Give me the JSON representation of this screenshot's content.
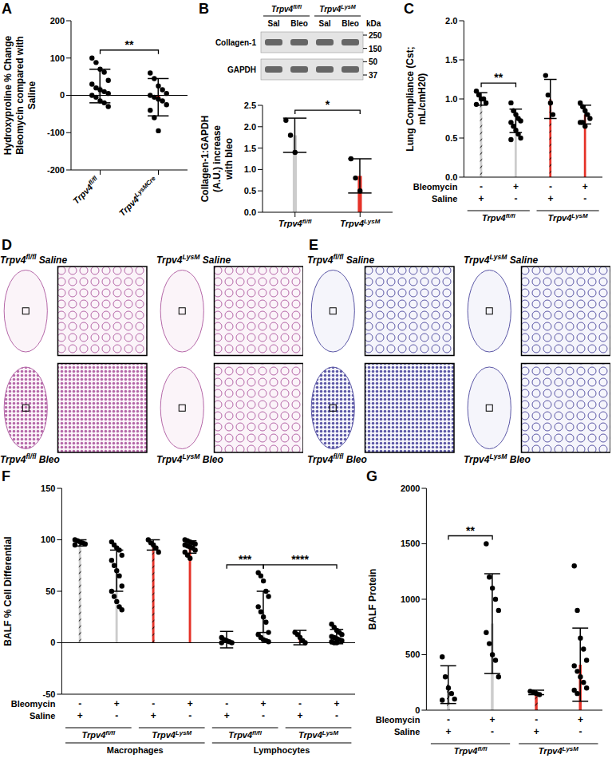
{
  "chart_data": [
    {
      "panel": "A",
      "type": "bar",
      "y_label": "Hydroxyproline % Change Bleomycin compared with Saline",
      "categories": [
        "Trpv4fl/fl",
        "Trpv4LysMCre"
      ],
      "values": [
        25,
        -5
      ],
      "error": [
        45,
        50
      ],
      "points": [
        [
          100,
          88,
          70,
          62,
          40,
          30,
          20,
          15,
          10,
          5,
          0,
          -5,
          -15,
          -20,
          -30
        ],
        [
          60,
          45,
          25,
          15,
          5,
          0,
          -5,
          -10,
          -15,
          -25,
          -40,
          -60,
          -95
        ]
      ],
      "colors": [
        "#cccccc",
        "#e53228"
      ],
      "ylim": [
        -200,
        200
      ],
      "yticks": [
        -200,
        -100,
        0,
        100,
        200
      ],
      "annotations": [
        {
          "text": "**",
          "from": 0,
          "to": 1
        }
      ]
    },
    {
      "panel": "B",
      "type": "bar",
      "y_label": "Collagen-1:GAPDH (A.U.) increase with bleo",
      "categories": [
        "Trpv4fl/fl",
        "Trpv4LysM"
      ],
      "values": [
        1.8,
        0.85
      ],
      "error": [
        0.4,
        0.4
      ],
      "points": [
        [
          2.15,
          1.8,
          1.4
        ],
        [
          1.25,
          0.8,
          0.5
        ]
      ],
      "colors": [
        "#cccccc",
        "#e53228"
      ],
      "ylim": [
        0,
        2.5
      ],
      "yticks": [
        {
          "value": 0,
          "label": "0.0"
        },
        {
          "value": 0.5,
          "label": "0.5"
        },
        {
          "value": 1,
          "label": "1.0"
        },
        {
          "value": 1.5,
          "label": "1.5"
        },
        {
          "value": 2,
          "label": "2.0"
        },
        {
          "value": 2.5,
          "label": "2.5"
        }
      ],
      "annotations": [
        {
          "text": "*",
          "from": 0,
          "to": 1
        }
      ],
      "blot": {
        "groups": [
          {
            "label": "Trpv4fl/fl",
            "span": [
              0,
              1
            ]
          },
          {
            "label": "Trpv4LysM",
            "span": [
              2,
              3
            ]
          }
        ],
        "lanes": [
          "Sal",
          "Bleo",
          "Sal",
          "Bleo"
        ],
        "rows": [
          "Collagen-1",
          "GAPDH"
        ],
        "marker_unit": "kDa",
        "markers": [
          250,
          150,
          50,
          37
        ]
      }
    },
    {
      "panel": "C",
      "type": "bar",
      "y_label": "Lung Compliance (Cst; mL/cmH20)",
      "values": [
        1.0,
        0.72,
        1.0,
        0.8
      ],
      "error": [
        0.08,
        0.15,
        0.25,
        0.12
      ],
      "points": [
        [
          1.1,
          1.05,
          1.0,
          1.0,
          0.95,
          0.93
        ],
        [
          0.95,
          0.85,
          0.8,
          0.75,
          0.72,
          0.7,
          0.65,
          0.6,
          0.55,
          0.5,
          0.48
        ],
        [
          1.3,
          1.05,
          0.95,
          0.8
        ],
        [
          0.95,
          0.9,
          0.85,
          0.8,
          0.75,
          0.7,
          0.7,
          0.65
        ]
      ],
      "colors": [
        "#cccccc",
        "#cccccc",
        "#e53228",
        "#e53228"
      ],
      "ylim": [
        0,
        2
      ],
      "yticks": [
        {
          "value": 0,
          "label": "0.0"
        },
        {
          "value": 0.5,
          "label": "0.5"
        },
        {
          "value": 1,
          "label": "1.0"
        },
        {
          "value": 1.5,
          "label": "1.5"
        },
        {
          "value": 2,
          "label": "2.0"
        }
      ],
      "treatments": [
        {
          "label": "Bleomycin",
          "signs": [
            "-",
            "+",
            "-",
            "+"
          ]
        },
        {
          "label": "Saline",
          "signs": [
            "+",
            "-",
            "+",
            "-"
          ]
        }
      ],
      "groups": [
        {
          "label": "Trpv4fl/fl",
          "span": [
            0,
            1
          ]
        },
        {
          "label": "Trpv4LysM",
          "span": [
            2,
            3
          ]
        }
      ],
      "annotations": [
        {
          "text": "**",
          "from": 0,
          "to": 1
        }
      ]
    },
    {
      "panel": "F",
      "type": "bar",
      "y_label": "BALF % Cell Differential",
      "values": [
        97,
        70,
        95,
        93,
        3,
        30,
        5,
        6
      ],
      "error": [
        3,
        20,
        5,
        6,
        8,
        20,
        7,
        7
      ],
      "points": [
        [
          100,
          99,
          98,
          97,
          96,
          95
        ],
        [
          98,
          95,
          92,
          90,
          85,
          80,
          75,
          70,
          65,
          55,
          50,
          45,
          40,
          35,
          32
        ],
        [
          100,
          97,
          95,
          92,
          88
        ],
        [
          100,
          99,
          98,
          97,
          96,
          95,
          94,
          93,
          92,
          90,
          88,
          85,
          82
        ],
        [
          5,
          3,
          2,
          1,
          0,
          0
        ],
        [
          68,
          65,
          60,
          50,
          45,
          35,
          30,
          25,
          20,
          10,
          8,
          5,
          3,
          2,
          1
        ],
        [
          10,
          8,
          5,
          2,
          0
        ],
        [
          18,
          15,
          12,
          10,
          8,
          6,
          5,
          4,
          3,
          2,
          1,
          0,
          0
        ]
      ],
      "colors": [
        "#cccccc",
        "#cccccc",
        "#e53228",
        "#e53228",
        "#cccccc",
        "#cccccc",
        "#e53228",
        "#e53228"
      ],
      "ylim": [
        -50,
        150
      ],
      "yticks": [
        -50,
        0,
        50,
        100,
        150
      ],
      "treatments": [
        {
          "label": "Bleomycin",
          "signs": [
            "-",
            "+",
            "-",
            "+",
            "-",
            "+",
            "-",
            "+"
          ]
        },
        {
          "label": "Saline",
          "signs": [
            "+",
            "-",
            "+",
            "-",
            "+",
            "-",
            "+",
            "-"
          ]
        }
      ],
      "groups": [
        {
          "label": "Trpv4fl/fl",
          "span": [
            0,
            1
          ]
        },
        {
          "label": "Trpv4LysM",
          "span": [
            2,
            3
          ]
        },
        {
          "label": "Trpv4fl/fl",
          "span": [
            4,
            5
          ]
        },
        {
          "label": "Trpv4LysM",
          "span": [
            6,
            7
          ]
        }
      ],
      "supergroups": [
        {
          "label": "Macrophages",
          "span": [
            0,
            3
          ]
        },
        {
          "label": "Lymphocytes",
          "span": [
            4,
            7
          ]
        }
      ],
      "annotations": [
        {
          "text": "***",
          "from": 4,
          "to": 5
        },
        {
          "text": "****",
          "from": 5,
          "to": 7
        }
      ]
    },
    {
      "panel": "G",
      "type": "bar",
      "y_label": "BALF Protein",
      "values": [
        230,
        780,
        160,
        410
      ],
      "error": [
        170,
        450,
        20,
        330
      ],
      "points": [
        [
          480,
          300,
          200,
          150,
          100,
          90
        ],
        [
          1500,
          1200,
          1100,
          1000,
          900,
          700,
          600,
          500,
          450,
          300
        ],
        [
          170,
          160,
          150,
          140
        ],
        [
          1300,
          900,
          650,
          550,
          450,
          400,
          350,
          300,
          250,
          200,
          180,
          150
        ]
      ],
      "colors": [
        "#cccccc",
        "#cccccc",
        "#e53228",
        "#e53228"
      ],
      "ylim": [
        0,
        2000
      ],
      "yticks": [
        0,
        500,
        1000,
        1500,
        2000
      ],
      "treatments": [
        {
          "label": "Bleomycin",
          "signs": [
            "-",
            "+",
            "-",
            "+"
          ]
        },
        {
          "label": "Saline",
          "signs": [
            "+",
            "-",
            "+",
            "-"
          ]
        }
      ],
      "groups": [
        {
          "label": "Trpv4fl/fl",
          "span": [
            0,
            1
          ]
        },
        {
          "label": "Trpv4LysM",
          "span": [
            2,
            3
          ]
        }
      ],
      "annotations": [
        {
          "text": "**",
          "from": 0,
          "to": 1
        }
      ]
    }
  ],
  "images": [
    {
      "panel": "D",
      "labels": [
        "Trpv4fl/fl Saline",
        "Trpv4LysM Saline",
        "Trpv4fl/fl Bleo",
        "Trpv4LysM Bleo"
      ]
    },
    {
      "panel": "E",
      "labels": [
        "Trpv4fl/fl Saline",
        "Trpv4LysM Saline",
        "Trpv4fl/fl Bleo",
        "Trpv4LysM Bleo"
      ]
    }
  ]
}
